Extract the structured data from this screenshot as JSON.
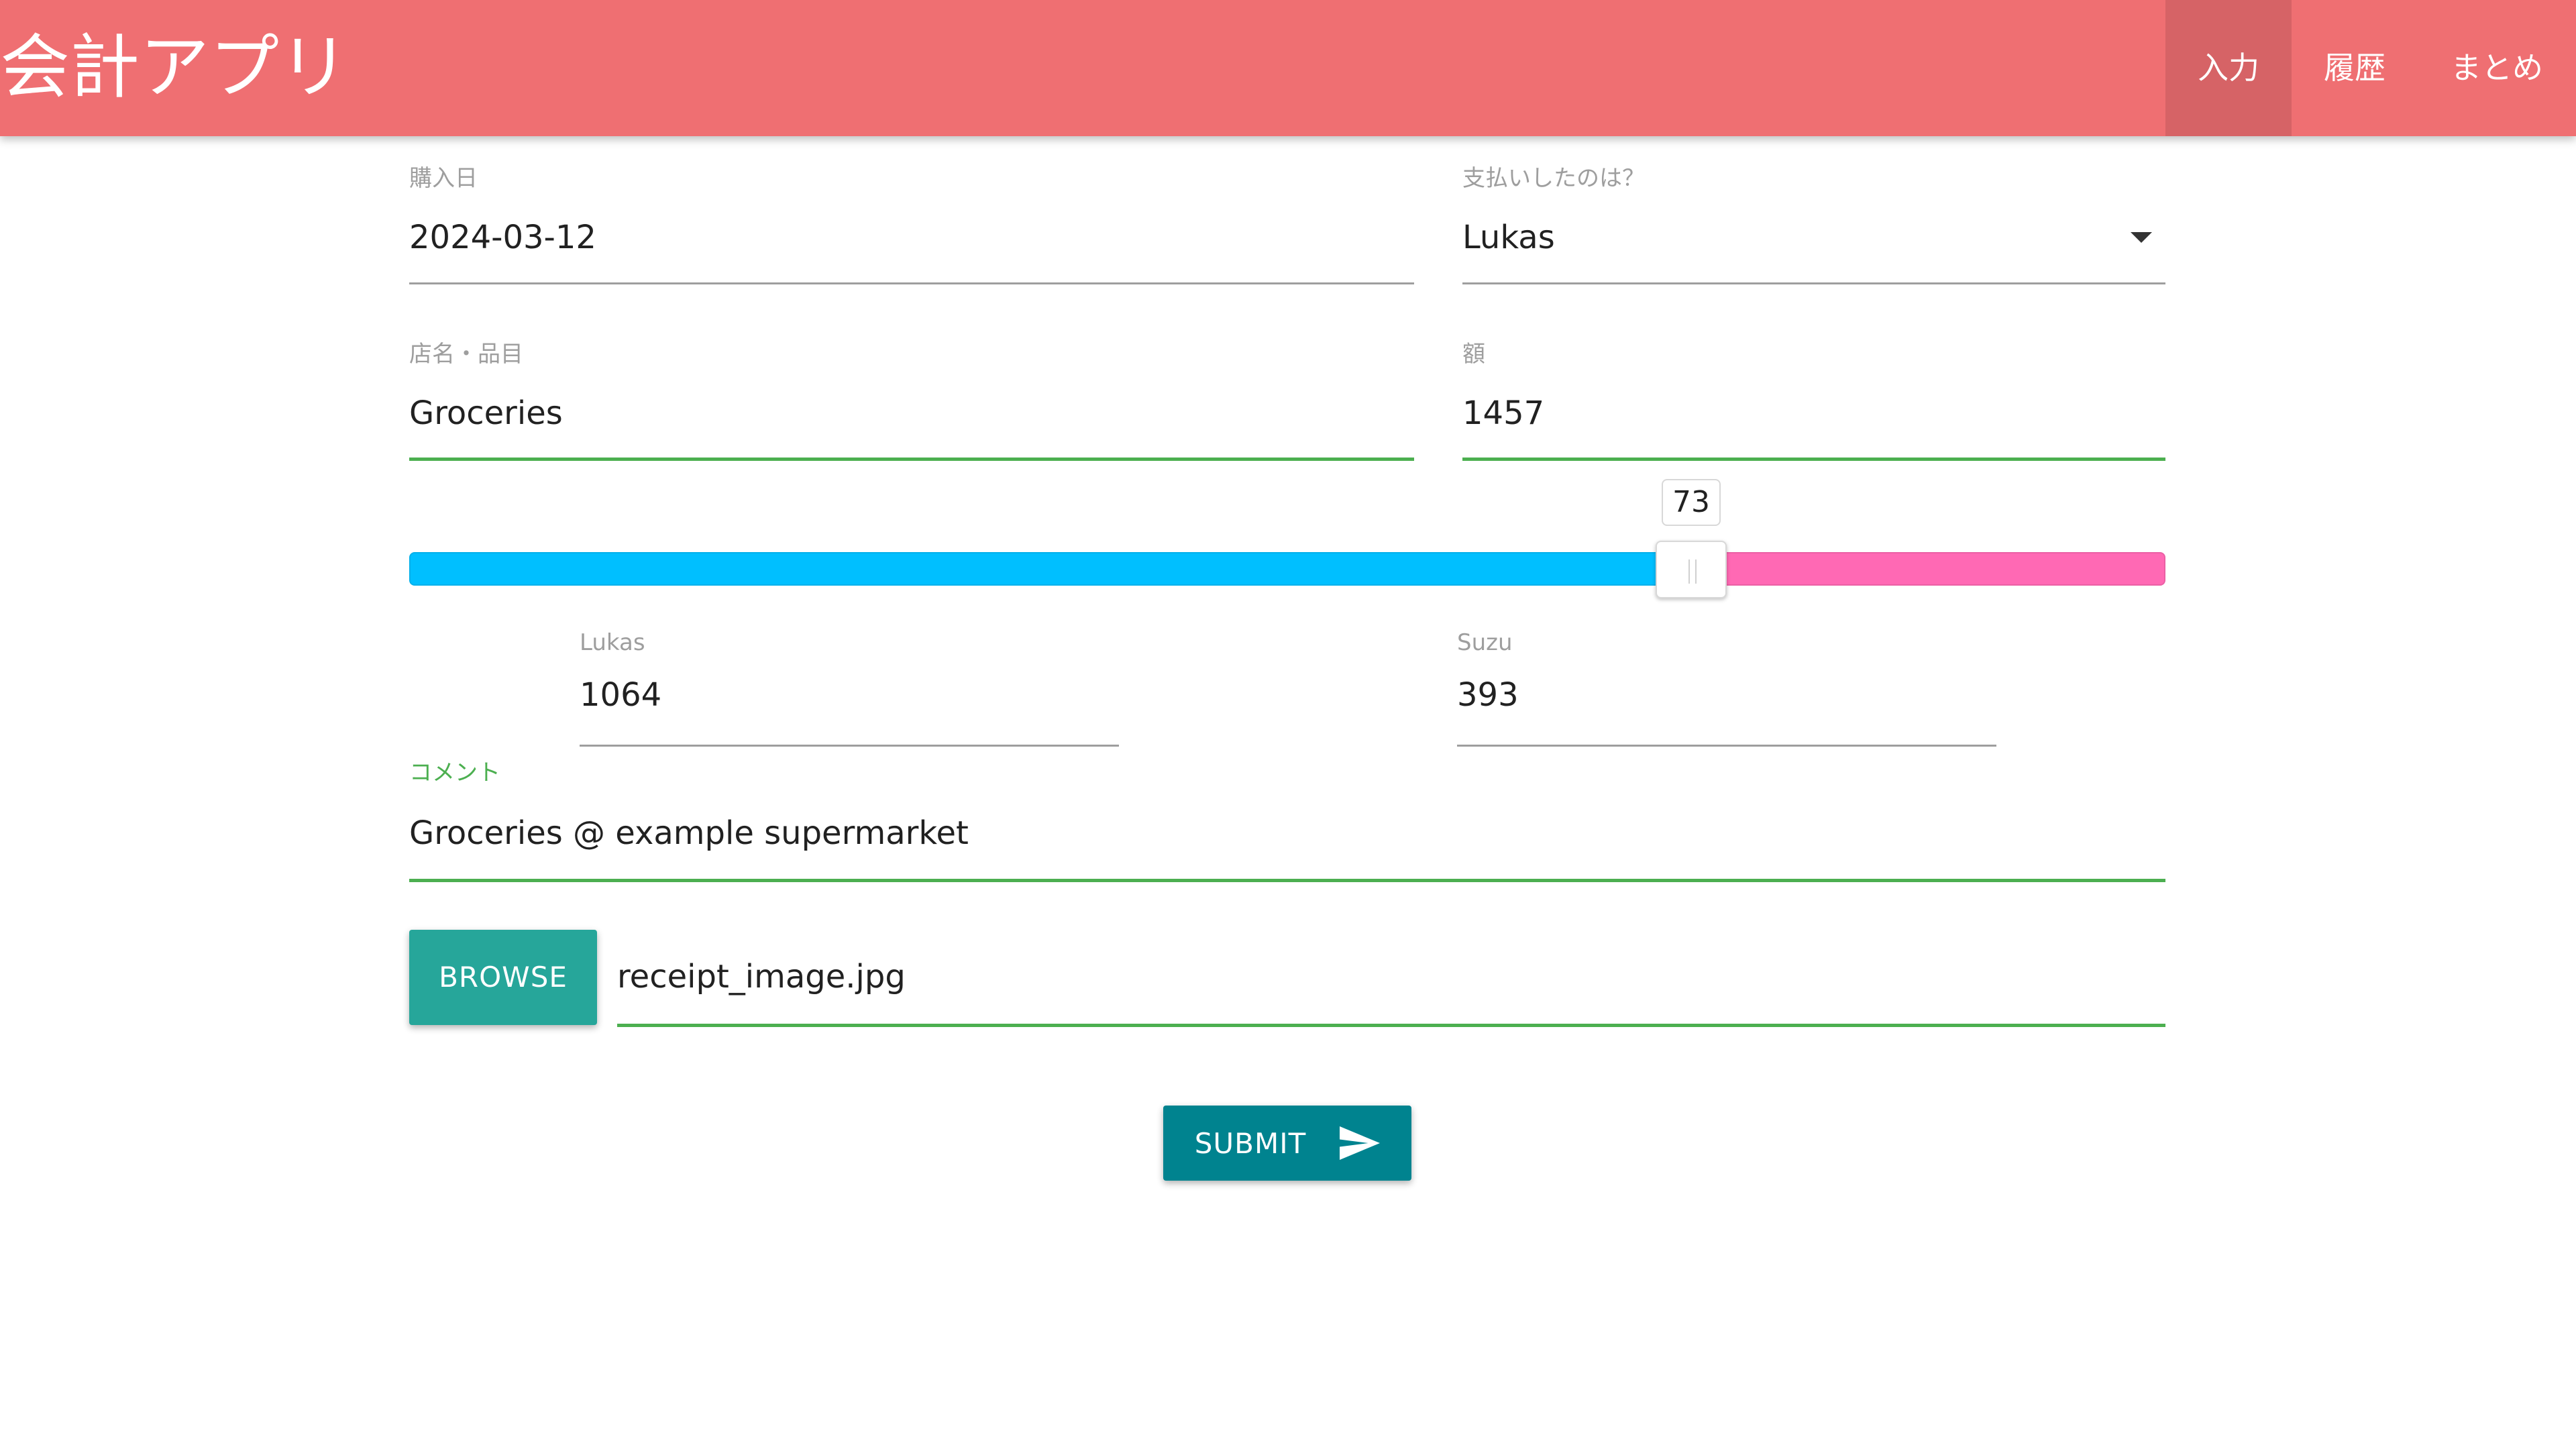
{
  "app": {
    "title": "会計アプリ",
    "brand_color": "#ef6f72"
  },
  "nav": {
    "items": [
      {
        "label": "入力",
        "active": true
      },
      {
        "label": "履歴",
        "active": false
      },
      {
        "label": "まとめ",
        "active": false
      }
    ]
  },
  "form": {
    "purchase_date": {
      "label": "購入日",
      "value": "2024-03-12"
    },
    "payer": {
      "label": "支払いしたのは？",
      "value": "Lukas"
    },
    "store_item": {
      "label": "店名・品目",
      "value": "Groceries"
    },
    "amount": {
      "label": "額",
      "value": "1457"
    },
    "split": {
      "value": "73",
      "fraction": 0.73,
      "left_color": "#00bfff",
      "right_color": "#ff69b4"
    },
    "lukas_share": {
      "label": "Lukas",
      "value": "1064"
    },
    "suzu_share": {
      "label": "Suzu",
      "value": "393"
    },
    "comment": {
      "label": "コメント",
      "value": "Groceries @ example supermarket"
    },
    "file": {
      "button_label": "BROWSE",
      "value": "receipt_image.jpg"
    },
    "submit": {
      "label": "SUBMIT",
      "icon": "send-icon"
    }
  }
}
